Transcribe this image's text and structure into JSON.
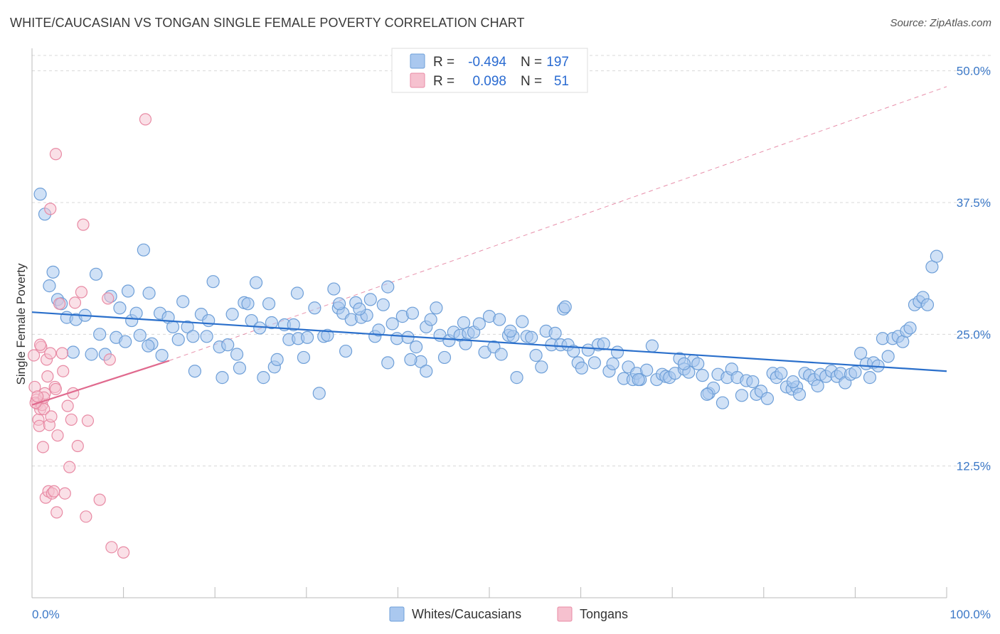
{
  "title": "WHITE/CAUCASIAN VS TONGAN SINGLE FEMALE POVERTY CORRELATION CHART",
  "source": "Source: ZipAtlas.com",
  "colors": {
    "blue_fill": "#aac8ef",
    "blue_stroke": "#6e9fd8",
    "blue_line": "#2a6fcb",
    "pink_fill": "#f6c1cf",
    "pink_stroke": "#e88aa4",
    "pink_line": "#e06a8e",
    "tick_text": "#3b78c7",
    "grid": "#d8d8d8"
  },
  "legend": {
    "rows": [
      {
        "r_label": "R =",
        "r_value": "-0.494",
        "n_label": "N =",
        "n_value": "197",
        "color": "blue"
      },
      {
        "r_label": "R =",
        "r_value": "0.098",
        "n_label": "N =",
        "n_value": "51",
        "color": "pink"
      }
    ]
  },
  "bottom_legend": [
    {
      "label": "Whites/Caucasians",
      "color": "blue"
    },
    {
      "label": "Tongans",
      "color": "pink"
    }
  ],
  "chart_data": {
    "type": "scatter",
    "title": "WHITE/CAUCASIAN VS TONGAN SINGLE FEMALE POVERTY CORRELATION CHART",
    "xlabel": "",
    "ylabel": "Single Female Poverty",
    "xlim": [
      0,
      100
    ],
    "ylim": [
      0,
      52
    ],
    "x_tick_labels": [
      "0.0%",
      "100.0%"
    ],
    "y_ticks": [
      12.5,
      25.0,
      37.5,
      50.0
    ],
    "y_tick_labels": [
      "12.5%",
      "25.0%",
      "37.5%",
      "50.0%"
    ],
    "grid": "horizontal dashed",
    "legend_position": "top-center",
    "series": [
      {
        "name": "Whites/Caucasians",
        "color": "blue",
        "trend": {
          "x0": 0,
          "y0": 27.1,
          "x1": 100,
          "y1": 21.5
        },
        "points": [
          [
            0.9,
            38.3
          ],
          [
            1.4,
            36.4
          ],
          [
            1.9,
            29.6
          ],
          [
            2.3,
            30.9
          ],
          [
            2.8,
            28.3
          ],
          [
            3.2,
            27.9
          ],
          [
            3.8,
            26.6
          ],
          [
            4.5,
            23.3
          ],
          [
            4.8,
            26.4
          ],
          [
            5.8,
            26.8
          ],
          [
            6.5,
            23.1
          ],
          [
            7.0,
            30.7
          ],
          [
            7.4,
            25.0
          ],
          [
            8.0,
            23.1
          ],
          [
            8.6,
            28.6
          ],
          [
            9.2,
            24.7
          ],
          [
            9.6,
            27.5
          ],
          [
            10.2,
            24.3
          ],
          [
            10.5,
            29.1
          ],
          [
            10.9,
            26.3
          ],
          [
            11.4,
            27.0
          ],
          [
            11.8,
            24.9
          ],
          [
            12.2,
            33.0
          ],
          [
            12.8,
            28.9
          ],
          [
            13.1,
            24.1
          ],
          [
            14.0,
            27.0
          ],
          [
            14.2,
            23.0
          ],
          [
            14.9,
            26.6
          ],
          [
            15.4,
            25.7
          ],
          [
            16.0,
            24.5
          ],
          [
            16.5,
            28.1
          ],
          [
            17.0,
            25.7
          ],
          [
            17.6,
            24.8
          ],
          [
            17.8,
            21.5
          ],
          [
            18.5,
            26.9
          ],
          [
            19.1,
            24.8
          ],
          [
            19.3,
            26.3
          ],
          [
            19.8,
            30.0
          ],
          [
            20.5,
            23.8
          ],
          [
            20.8,
            20.9
          ],
          [
            21.4,
            24.0
          ],
          [
            21.9,
            26.9
          ],
          [
            22.4,
            23.1
          ],
          [
            22.7,
            21.8
          ],
          [
            23.2,
            28.0
          ],
          [
            23.6,
            27.9
          ],
          [
            24.0,
            26.3
          ],
          [
            24.5,
            29.9
          ],
          [
            24.9,
            25.6
          ],
          [
            25.3,
            20.9
          ],
          [
            25.9,
            27.9
          ],
          [
            26.5,
            21.9
          ],
          [
            26.8,
            22.6
          ],
          [
            27.6,
            25.9
          ],
          [
            28.1,
            24.5
          ],
          [
            28.6,
            25.9
          ],
          [
            29.1,
            24.6
          ],
          [
            29.7,
            22.8
          ],
          [
            30.1,
            24.7
          ],
          [
            30.9,
            27.5
          ],
          [
            31.4,
            19.4
          ],
          [
            31.9,
            24.8
          ],
          [
            32.3,
            24.9
          ],
          [
            33.0,
            29.3
          ],
          [
            33.5,
            27.5
          ],
          [
            34.0,
            27.0
          ],
          [
            34.3,
            23.4
          ],
          [
            34.9,
            26.4
          ],
          [
            35.4,
            28.0
          ],
          [
            36.0,
            26.6
          ],
          [
            36.6,
            26.8
          ],
          [
            37.0,
            28.3
          ],
          [
            37.5,
            24.8
          ],
          [
            37.9,
            25.4
          ],
          [
            38.4,
            27.8
          ],
          [
            38.9,
            29.5
          ],
          [
            39.4,
            26.0
          ],
          [
            39.9,
            24.6
          ],
          [
            40.5,
            26.7
          ],
          [
            41.1,
            24.7
          ],
          [
            41.6,
            27.0
          ],
          [
            42.0,
            23.8
          ],
          [
            42.5,
            22.4
          ],
          [
            43.1,
            25.7
          ],
          [
            43.6,
            26.4
          ],
          [
            44.2,
            27.5
          ],
          [
            44.6,
            24.9
          ],
          [
            45.1,
            22.8
          ],
          [
            45.6,
            24.4
          ],
          [
            46.1,
            25.2
          ],
          [
            46.8,
            24.9
          ],
          [
            47.4,
            24.1
          ],
          [
            47.7,
            25.1
          ],
          [
            48.3,
            25.2
          ],
          [
            48.9,
            26.0
          ],
          [
            49.5,
            23.3
          ],
          [
            50.0,
            26.7
          ],
          [
            50.5,
            23.8
          ],
          [
            51.1,
            26.4
          ],
          [
            51.3,
            23.1
          ],
          [
            52.1,
            24.9
          ],
          [
            52.6,
            24.8
          ],
          [
            53.0,
            20.9
          ],
          [
            53.6,
            26.2
          ],
          [
            54.1,
            24.8
          ],
          [
            54.6,
            24.7
          ],
          [
            55.1,
            23.0
          ],
          [
            55.7,
            21.9
          ],
          [
            56.2,
            25.3
          ],
          [
            56.8,
            24.0
          ],
          [
            57.2,
            25.1
          ],
          [
            57.8,
            24.0
          ],
          [
            58.1,
            27.4
          ],
          [
            58.6,
            24.0
          ],
          [
            59.2,
            23.4
          ],
          [
            59.7,
            22.3
          ],
          [
            60.1,
            21.8
          ],
          [
            60.8,
            23.5
          ],
          [
            61.5,
            22.3
          ],
          [
            61.9,
            24.0
          ],
          [
            62.5,
            24.1
          ],
          [
            63.1,
            21.5
          ],
          [
            63.5,
            22.2
          ],
          [
            64.0,
            23.3
          ],
          [
            64.7,
            20.8
          ],
          [
            65.2,
            21.9
          ],
          [
            65.7,
            20.7
          ],
          [
            66.1,
            21.3
          ],
          [
            66.5,
            20.7
          ],
          [
            67.2,
            21.6
          ],
          [
            67.8,
            23.9
          ],
          [
            68.3,
            20.7
          ],
          [
            68.9,
            21.2
          ],
          [
            69.3,
            21.0
          ],
          [
            69.7,
            20.9
          ],
          [
            70.3,
            21.3
          ],
          [
            70.8,
            22.7
          ],
          [
            71.3,
            21.7
          ],
          [
            71.8,
            21.4
          ],
          [
            72.3,
            22.5
          ],
          [
            72.8,
            22.2
          ],
          [
            73.3,
            21.1
          ],
          [
            74.0,
            19.4
          ],
          [
            74.5,
            19.9
          ],
          [
            75.0,
            21.2
          ],
          [
            75.5,
            18.5
          ],
          [
            76.0,
            20.9
          ],
          [
            76.5,
            21.7
          ],
          [
            77.1,
            20.9
          ],
          [
            77.6,
            19.2
          ],
          [
            78.1,
            20.6
          ],
          [
            78.8,
            20.5
          ],
          [
            79.2,
            19.3
          ],
          [
            79.7,
            19.6
          ],
          [
            80.4,
            18.9
          ],
          [
            81.0,
            21.3
          ],
          [
            81.4,
            20.9
          ],
          [
            81.9,
            21.3
          ],
          [
            82.5,
            20.0
          ],
          [
            83.1,
            19.8
          ],
          [
            83.6,
            20.0
          ],
          [
            83.9,
            19.3
          ],
          [
            84.5,
            21.3
          ],
          [
            85.0,
            21.1
          ],
          [
            85.5,
            20.7
          ],
          [
            85.9,
            20.1
          ],
          [
            86.2,
            21.2
          ],
          [
            86.8,
            21.0
          ],
          [
            87.4,
            21.5
          ],
          [
            88.0,
            21.0
          ],
          [
            88.4,
            21.3
          ],
          [
            88.9,
            20.4
          ],
          [
            89.5,
            21.2
          ],
          [
            90.0,
            21.4
          ],
          [
            90.6,
            23.2
          ],
          [
            91.2,
            22.2
          ],
          [
            91.6,
            20.9
          ],
          [
            92.0,
            22.3
          ],
          [
            92.5,
            22.0
          ],
          [
            93.0,
            24.6
          ],
          [
            93.6,
            22.9
          ],
          [
            94.1,
            24.6
          ],
          [
            94.7,
            24.8
          ],
          [
            95.2,
            24.3
          ],
          [
            95.6,
            25.3
          ],
          [
            96.0,
            25.6
          ],
          [
            96.5,
            27.8
          ],
          [
            97.0,
            28.1
          ],
          [
            97.4,
            28.5
          ],
          [
            97.9,
            27.8
          ],
          [
            98.4,
            31.4
          ],
          [
            98.9,
            32.4
          ],
          [
            26.2,
            26.1
          ],
          [
            38.9,
            22.3
          ],
          [
            43.1,
            21.5
          ],
          [
            47.2,
            26.1
          ],
          [
            58.3,
            27.6
          ],
          [
            33.6,
            27.9
          ],
          [
            66.3,
            20.7
          ],
          [
            83.2,
            20.5
          ],
          [
            73.8,
            19.3
          ],
          [
            71.3,
            22.2
          ],
          [
            52.3,
            25.3
          ],
          [
            41.4,
            22.6
          ],
          [
            35.8,
            27.4
          ],
          [
            29.0,
            28.9
          ],
          [
            12.7,
            23.9
          ]
        ]
      },
      {
        "name": "Tongans",
        "color": "pink",
        "trend": {
          "x0": 0,
          "y0": 18.3,
          "x1": 15,
          "y1": 22.5
        },
        "trend_extension": {
          "x0": 15,
          "y0": 22.5,
          "x1": 100,
          "y1": 48.5
        },
        "points": [
          [
            0.2,
            23.0
          ],
          [
            0.3,
            20.0
          ],
          [
            0.5,
            18.8
          ],
          [
            0.6,
            18.4
          ],
          [
            0.7,
            16.9
          ],
          [
            0.8,
            16.3
          ],
          [
            0.9,
            17.9
          ],
          [
            1.0,
            23.8
          ],
          [
            1.1,
            18.3
          ],
          [
            1.2,
            14.3
          ],
          [
            1.3,
            17.9
          ],
          [
            1.4,
            19.4
          ],
          [
            1.5,
            9.5
          ],
          [
            1.6,
            22.6
          ],
          [
            1.7,
            21.0
          ],
          [
            1.8,
            10.1
          ],
          [
            1.9,
            16.4
          ],
          [
            2.0,
            23.2
          ],
          [
            2.1,
            17.2
          ],
          [
            2.2,
            9.9
          ],
          [
            2.4,
            10.1
          ],
          [
            2.5,
            20.0
          ],
          [
            2.6,
            19.8
          ],
          [
            2.7,
            8.1
          ],
          [
            2.8,
            15.4
          ],
          [
            3.0,
            27.9
          ],
          [
            3.3,
            23.2
          ],
          [
            3.4,
            21.5
          ],
          [
            3.6,
            9.9
          ],
          [
            3.9,
            18.2
          ],
          [
            4.1,
            12.4
          ],
          [
            4.3,
            16.9
          ],
          [
            4.5,
            19.4
          ],
          [
            4.7,
            28.0
          ],
          [
            5.0,
            14.4
          ],
          [
            5.4,
            29.0
          ],
          [
            5.6,
            35.4
          ],
          [
            5.9,
            7.7
          ],
          [
            6.1,
            16.8
          ],
          [
            7.4,
            9.3
          ],
          [
            8.3,
            28.4
          ],
          [
            8.5,
            22.6
          ],
          [
            8.7,
            4.8
          ],
          [
            10.0,
            4.3
          ],
          [
            12.4,
            45.4
          ],
          [
            2.6,
            42.1
          ],
          [
            2.0,
            36.9
          ],
          [
            0.4,
            18.5
          ],
          [
            0.9,
            24.0
          ],
          [
            1.3,
            19.0
          ],
          [
            0.6,
            19.1
          ]
        ]
      }
    ]
  }
}
